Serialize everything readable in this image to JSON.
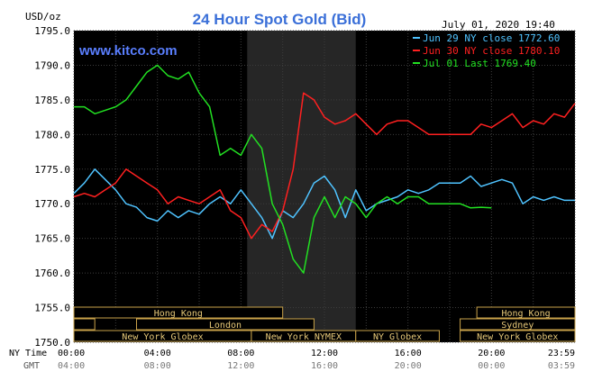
{
  "chart_data": {
    "type": "line",
    "title": "24 Hour Spot Gold (Bid)",
    "unit_label": "USD/oz",
    "date_label": "July 01, 2020 19:40",
    "watermark": "www.kitco.com",
    "ylim": [
      1750.0,
      1795.0
    ],
    "y_ticks": [
      "1795.0",
      "1790.0",
      "1785.0",
      "1780.0",
      "1775.0",
      "1770.0",
      "1765.0",
      "1760.0",
      "1755.0",
      "1750.0"
    ],
    "x_axis": {
      "row1_label": "NY Time",
      "row2_label": "GMT",
      "ny_ticks": [
        "00:00",
        "04:00",
        "08:00",
        "12:00",
        "16:00",
        "20:00",
        "23:59"
      ],
      "gmt_ticks": [
        "04:00",
        "08:00",
        "12:00",
        "16:00",
        "20:00",
        "00:00",
        "03:59"
      ]
    },
    "grid": true,
    "legend_position": "top-right",
    "series": [
      {
        "name": "Jun 29 NY close 1772.60",
        "color": "#4fc3ff",
        "x": [
          0,
          0.5,
          1,
          1.5,
          2,
          2.5,
          3,
          3.5,
          4,
          4.5,
          5,
          5.5,
          6,
          6.5,
          7,
          7.5,
          8,
          8.5,
          9,
          9.5,
          10,
          10.5,
          11,
          11.5,
          12,
          12.5,
          13,
          13.5,
          14,
          14.5,
          15,
          15.5,
          16,
          16.5,
          17,
          17.5,
          18,
          18.5,
          19,
          19.5,
          20,
          20.5,
          21,
          21.5,
          22,
          22.5,
          23,
          23.5,
          24
        ],
        "values": [
          1771.5,
          1773,
          1775,
          1773.5,
          1772,
          1770,
          1769.5,
          1768,
          1767.5,
          1769,
          1768,
          1769,
          1768.5,
          1770,
          1771,
          1770,
          1772,
          1770,
          1768,
          1765,
          1769,
          1768,
          1770,
          1773,
          1774,
          1772,
          1768,
          1772,
          1769,
          1770,
          1770.5,
          1771,
          1772,
          1771.5,
          1772,
          1773,
          1773,
          1773,
          1774,
          1772.5,
          1773,
          1773.5,
          1773,
          1770,
          1771,
          1770.5,
          1771,
          1770.5,
          1770.5
        ]
      },
      {
        "name": "Jun 30 NY close 1780.10",
        "color": "#ff2020",
        "x": [
          0,
          0.5,
          1,
          1.5,
          2,
          2.5,
          3,
          3.5,
          4,
          4.5,
          5,
          5.5,
          6,
          6.5,
          7,
          7.5,
          8,
          8.5,
          9,
          9.5,
          10,
          10.5,
          11,
          11.5,
          12,
          12.5,
          13,
          13.5,
          14,
          14.5,
          15,
          15.5,
          16,
          16.5,
          17,
          17.5,
          18,
          18.5,
          19,
          19.5,
          20,
          20.5,
          21,
          21.5,
          22,
          22.5,
          23,
          23.5,
          24
        ],
        "values": [
          1771,
          1771.5,
          1771,
          1772,
          1773,
          1775,
          1774,
          1773,
          1772,
          1770,
          1771,
          1770.5,
          1770,
          1771,
          1772,
          1769,
          1768,
          1765,
          1767,
          1766,
          1769,
          1775,
          1786,
          1785,
          1782.5,
          1781.5,
          1782,
          1783,
          1781.5,
          1780,
          1781.5,
          1782,
          1782,
          1781,
          1780,
          1780,
          1780,
          1780,
          1780,
          1781.5,
          1781,
          1782,
          1783,
          1781,
          1782,
          1781.5,
          1783,
          1782.5,
          1784.5
        ]
      },
      {
        "name": "Jul 01 Last 1769.40",
        "color": "#22e022",
        "x": [
          0,
          0.5,
          1,
          1.5,
          2,
          2.5,
          3,
          3.5,
          4,
          4.5,
          5,
          5.5,
          6,
          6.5,
          7,
          7.5,
          8,
          8.5,
          9,
          9.5,
          10,
          10.5,
          11,
          11.5,
          12,
          12.5,
          13,
          13.5,
          14,
          14.5,
          15,
          15.5,
          16,
          16.5,
          17,
          17.5,
          18,
          18.5,
          19,
          19.5,
          20
        ],
        "values": [
          1784,
          1784,
          1783,
          1783.5,
          1784,
          1785,
          1787,
          1789,
          1790,
          1788.5,
          1788,
          1789,
          1786,
          1784,
          1777,
          1778,
          1777,
          1780,
          1778,
          1770,
          1767,
          1762,
          1760,
          1768,
          1771,
          1768,
          1771,
          1770,
          1768,
          1770,
          1771,
          1770,
          1771,
          1771,
          1770,
          1770,
          1770,
          1770,
          1769.4,
          1769.5,
          1769.4
        ]
      }
    ],
    "sessions": [
      {
        "label": "Hong Kong",
        "start": 0,
        "end": 10,
        "row": 0
      },
      {
        "label": "Hong Kong",
        "start": 19.3,
        "end": 24,
        "row": 0
      },
      {
        "label": "",
        "start": 0,
        "end": 1,
        "row": 1
      },
      {
        "label": "London",
        "start": 3,
        "end": 11.5,
        "row": 1
      },
      {
        "label": "Sydney",
        "start": 18.5,
        "end": 24,
        "row": 1
      },
      {
        "label": "New York Globex",
        "start": 0,
        "end": 8.5,
        "row": 2
      },
      {
        "label": "New York NYMEX",
        "start": 8.5,
        "end": 13.5,
        "row": 2
      },
      {
        "label": "NY Globex",
        "start": 13.5,
        "end": 17.5,
        "row": 2
      },
      {
        "label": "New York Globex",
        "start": 18.5,
        "end": 24,
        "row": 2
      }
    ],
    "highlight_window": [
      8.3,
      13.5
    ]
  }
}
